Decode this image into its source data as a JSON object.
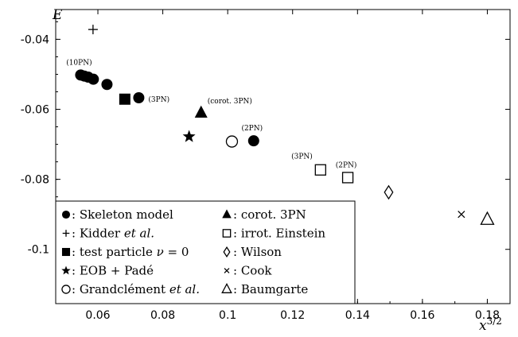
{
  "chart_data": {
    "type": "scatter",
    "xlabel": "x^{3/2}",
    "ylabel": "E",
    "xlim": [
      0.047,
      0.187
    ],
    "ylim": [
      -0.1155,
      -0.0315
    ],
    "xticks": [
      0.06,
      0.08,
      0.1,
      0.12,
      0.14,
      0.16,
      0.18
    ],
    "xtick_labels": [
      "0.06",
      "0.08",
      "0.1",
      "0.12",
      "0.14",
      "0.16",
      "0.18"
    ],
    "yticks": [
      -0.04,
      -0.06,
      -0.08,
      -0.1
    ],
    "ytick_labels": [
      "-0.04",
      "-0.06",
      "-0.08",
      "-0.1"
    ],
    "legend_placement": "bottom-left",
    "series": [
      {
        "name": "Skeleton model",
        "marker": "filled-circle",
        "points": [
          {
            "x": 0.0547,
            "y": -0.0502
          },
          {
            "x": 0.0558,
            "y": -0.0505
          },
          {
            "x": 0.057,
            "y": -0.0508
          },
          {
            "x": 0.0586,
            "y": -0.0514
          },
          {
            "x": 0.0628,
            "y": -0.0529
          },
          {
            "x": 0.0726,
            "y": -0.0567
          },
          {
            "x": 0.108,
            "y": -0.069
          }
        ]
      },
      {
        "name": "Kidder et al.",
        "marker": "plus",
        "points": [
          {
            "x": 0.0585,
            "y": -0.0372
          }
        ]
      },
      {
        "name": "test particle ν = 0",
        "marker": "filled-square",
        "points": [
          {
            "x": 0.0683,
            "y": -0.0571
          }
        ]
      },
      {
        "name": "EOB + Padé",
        "marker": "star",
        "points": [
          {
            "x": 0.0881,
            "y": -0.0678
          }
        ]
      },
      {
        "name": "Grandclément et al.",
        "marker": "open-circle",
        "points": [
          {
            "x": 0.1013,
            "y": -0.0692
          }
        ]
      },
      {
        "name": "corot. 3PN",
        "marker": "filled-triangle",
        "points": [
          {
            "x": 0.0918,
            "y": -0.061
          }
        ]
      },
      {
        "name": "irrot. Einstein",
        "marker": "open-square",
        "points": [
          {
            "x": 0.1286,
            "y": -0.0773
          },
          {
            "x": 0.137,
            "y": -0.0795
          }
        ]
      },
      {
        "name": "Wilson",
        "marker": "open-diamond",
        "points": [
          {
            "x": 0.1496,
            "y": -0.0837
          }
        ]
      },
      {
        "name": "Cook",
        "marker": "cross",
        "points": [
          {
            "x": 0.172,
            "y": -0.09
          }
        ]
      },
      {
        "name": "Baumgarte",
        "marker": "open-triangle",
        "points": [
          {
            "x": 0.18,
            "y": -0.0915
          }
        ]
      }
    ],
    "annotations": [
      {
        "text": "(10PN)",
        "x": 0.0547,
        "y": -0.0502,
        "anchor": "above"
      },
      {
        "text": "(3PN)",
        "x": 0.0726,
        "y": -0.0567,
        "anchor": "right"
      },
      {
        "text": "(corot. 3PN)",
        "x": 0.0918,
        "y": -0.061,
        "anchor": "upper-right"
      },
      {
        "text": "(2PN)",
        "x": 0.108,
        "y": -0.069,
        "anchor": "above"
      },
      {
        "text": "(3PN)",
        "x": 0.1286,
        "y": -0.0773,
        "anchor": "upper-left"
      },
      {
        "text": "(2PN)",
        "x": 0.137,
        "y": -0.0795,
        "anchor": "above"
      }
    ],
    "legend": {
      "col1": [
        {
          "marker": "filled-circle",
          "text": ": Skeleton model"
        },
        {
          "marker": "plus",
          "text": ": Kidder ",
          "italic": "et al."
        },
        {
          "marker": "filled-square",
          "text": ": test particle ",
          "italic": "ν",
          "tail": " = 0"
        },
        {
          "marker": "star",
          "text": ": EOB + Padé"
        },
        {
          "marker": "open-circle",
          "text": ": Grandclément ",
          "italic": "et al."
        }
      ],
      "col2": [
        {
          "marker": "filled-triangle",
          "text": ": corot. 3PN"
        },
        {
          "marker": "open-square",
          "text": ": irrot. Einstein"
        },
        {
          "marker": "open-diamond",
          "text": ": Wilson"
        },
        {
          "marker": "cross",
          "text": ": Cook"
        },
        {
          "marker": "open-triangle",
          "text": ": Baumgarte"
        }
      ]
    }
  }
}
